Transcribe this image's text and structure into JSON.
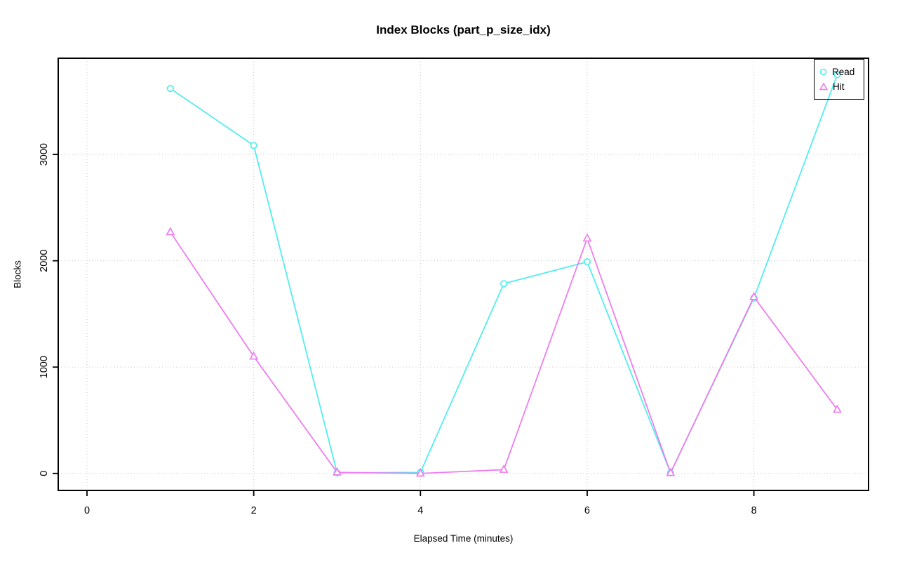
{
  "title": "Index Blocks (part_p_size_idx)",
  "chart_data": {
    "type": "line",
    "title": "Index Blocks (part_p_size_idx)",
    "xlabel": "Elapsed Time (minutes)",
    "ylabel": "Blocks",
    "x": [
      1,
      2,
      3,
      4,
      5,
      6,
      7,
      8,
      9
    ],
    "series": [
      {
        "name": "Read",
        "marker": "circle",
        "color": "#52EDED",
        "values": [
          3620,
          3085,
          5,
          10,
          1785,
          1990,
          5,
          1650,
          3750
        ]
      },
      {
        "name": "Hit",
        "marker": "triangle",
        "color": "#EE7DEE",
        "values": [
          2270,
          1100,
          10,
          0,
          35,
          2210,
          5,
          1660,
          600
        ]
      }
    ],
    "xticks": [
      0,
      2,
      4,
      6,
      8
    ],
    "yticks": [
      0,
      1000,
      2000,
      3000
    ],
    "xlim": [
      -0.345,
      9.375
    ],
    "ylim": [
      -160,
      3905
    ],
    "grid": "dotted",
    "grid_color": "#c9c9c9",
    "legend_position": "top-right",
    "legend": [
      "Read",
      "Hit"
    ],
    "axis_color": "#000000"
  }
}
